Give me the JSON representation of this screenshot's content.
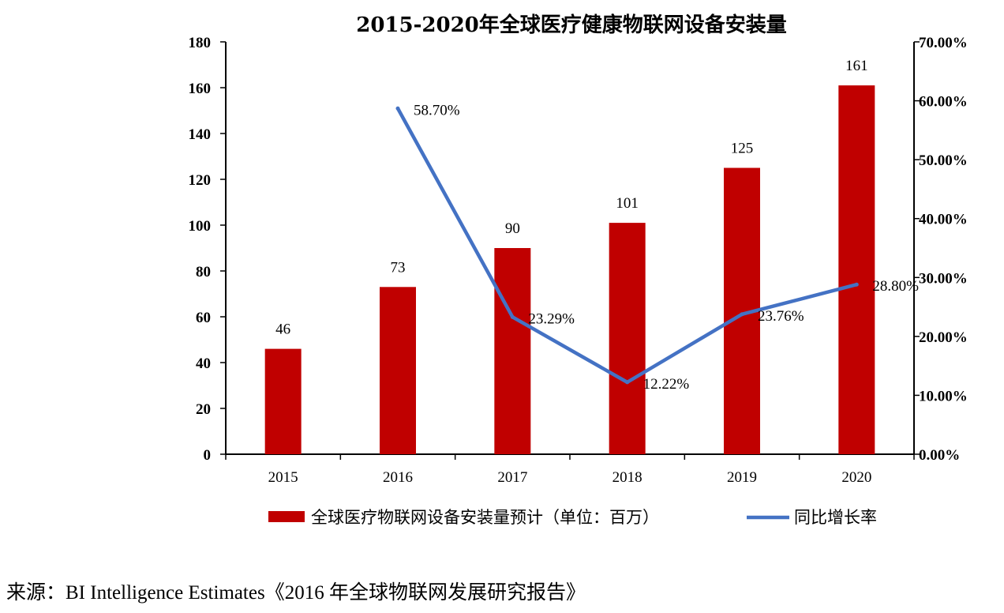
{
  "chart_data": {
    "type": "bar",
    "title": "2015-2020年全球医疗健康物联网设备安装量",
    "categories": [
      "2015",
      "2016",
      "2017",
      "2018",
      "2019",
      "2020"
    ],
    "series": [
      {
        "name": "全球医疗物联网设备安装量预计（单位：百万）",
        "type": "bar",
        "axis": "left",
        "color": "#C00000",
        "values": [
          46,
          73,
          90,
          101,
          125,
          161
        ],
        "labels": [
          "46",
          "73",
          "90",
          "101",
          "125",
          "161"
        ]
      },
      {
        "name": "同比增长率",
        "type": "line",
        "axis": "right",
        "color": "#4472C4",
        "values": [
          null,
          58.7,
          23.29,
          12.22,
          23.76,
          28.8
        ],
        "labels": [
          null,
          "58.70%",
          "23.29%",
          "12.22%",
          "23.76%",
          "28.80%"
        ]
      }
    ],
    "y_left": {
      "ylim": [
        0,
        180
      ],
      "ticks": [
        "0",
        "20",
        "40",
        "60",
        "80",
        "100",
        "120",
        "140",
        "160",
        "180"
      ]
    },
    "y_right": {
      "ylim": [
        0,
        70
      ],
      "ticks": [
        "0.00%",
        "10.00%",
        "20.00%",
        "30.00%",
        "40.00%",
        "50.00%",
        "60.00%",
        "70.00%"
      ]
    },
    "grid": false,
    "legend_position": "bottom"
  },
  "source": "来源：BI Intelligence Estimates《2016 年全球物联网发展研究报告》"
}
